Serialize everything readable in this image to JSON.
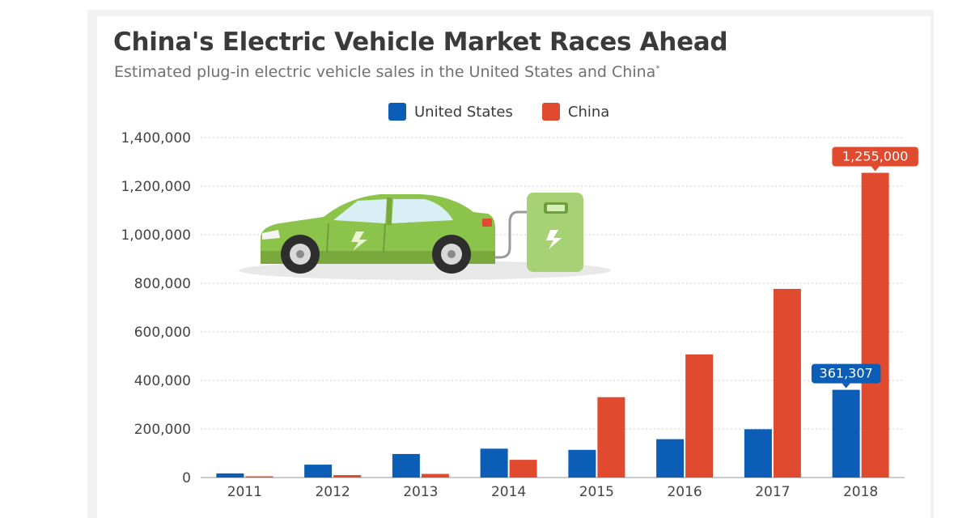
{
  "header": {
    "title": "China's Electric Vehicle Market Races Ahead",
    "subtitle": "Estimated plug-in electric vehicle sales in the United States and China",
    "footnote_marker": "*"
  },
  "legend": [
    {
      "name": "United States",
      "color": "#0b5db5"
    },
    {
      "name": "China",
      "color": "#e04a2f"
    }
  ],
  "illustration": {
    "icon": "electric-car-charging-icon",
    "car_color": "#8cc34b",
    "charger_color": "#a6d175"
  },
  "chart_data": {
    "type": "bar",
    "title": "China's Electric Vehicle Market Races Ahead",
    "subtitle": "Estimated plug-in electric vehicle sales in the United States and China",
    "categories": [
      "2011",
      "2012",
      "2013",
      "2014",
      "2015",
      "2016",
      "2017",
      "2018"
    ],
    "series": [
      {
        "name": "United States",
        "color": "#0b5db5",
        "values": [
          17000,
          53000,
          97000,
          119000,
          114000,
          158000,
          199000,
          361307
        ]
      },
      {
        "name": "China",
        "color": "#e04a2f",
        "values": [
          5000,
          10000,
          15000,
          73000,
          331000,
          507000,
          777000,
          1255000
        ]
      }
    ],
    "data_labels": [
      {
        "series": "United States",
        "category": "2018",
        "text": "361,307"
      },
      {
        "series": "China",
        "category": "2018",
        "text": "1,255,000"
      }
    ],
    "yticks": [
      0,
      200000,
      400000,
      600000,
      800000,
      1000000,
      1200000,
      1400000
    ],
    "ytick_labels": [
      "0",
      "200,000",
      "400,000",
      "600,000",
      "800,000",
      "1,000,000",
      "1,200,000",
      "1,400,000"
    ],
    "ylim": [
      0,
      1400000
    ],
    "xlabel": "",
    "ylabel": "",
    "grid": true,
    "legend_position": "top-center"
  }
}
